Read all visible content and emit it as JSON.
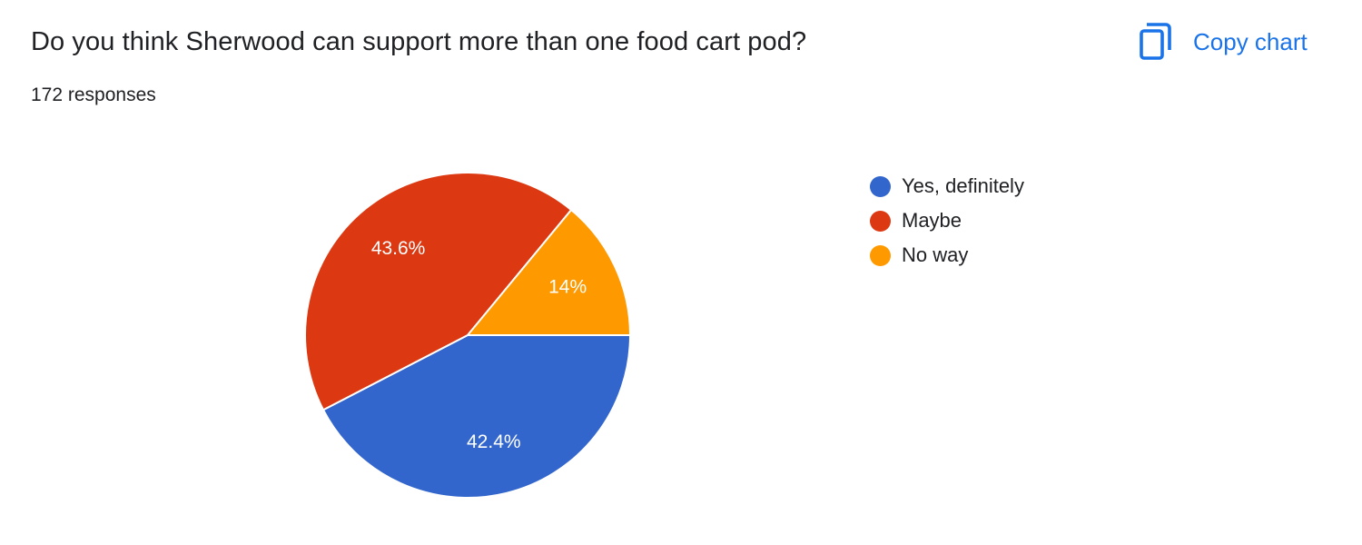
{
  "header": {
    "title": "Do you think Sherwood can support more than one food cart pod?",
    "responses": "172 responses",
    "copy_chart_label": "Copy chart",
    "copy_icon": "copy-icon",
    "accent_color": "#1a73e8"
  },
  "chart_data": {
    "type": "pie",
    "total_responses": 172,
    "slices": [
      {
        "name": "Yes, definitely",
        "percent": 42.4,
        "label": "42.4%",
        "color": "#3366cc"
      },
      {
        "name": "Maybe",
        "percent": 43.6,
        "label": "43.6%",
        "color": "#dc3912"
      },
      {
        "name": "No way",
        "percent": 14.0,
        "label": "14%",
        "color": "#ff9900"
      }
    ],
    "legend_position": "right",
    "start_angle_deg": 0,
    "direction": "clockwise-from-3-oclock"
  }
}
